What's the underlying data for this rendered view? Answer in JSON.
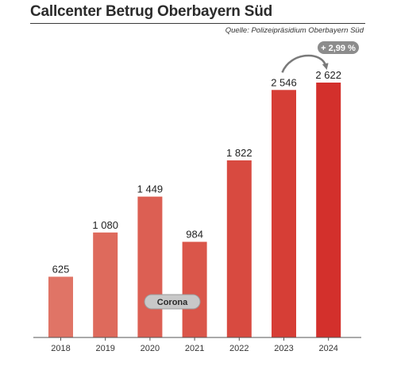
{
  "header": {
    "title": "Callcenter Betrug Oberbayern Süd",
    "source": "Quelle: Polizeipräsidium Oberbayern Süd"
  },
  "chart_data": {
    "type": "bar",
    "categories": [
      "2018",
      "2019",
      "2020",
      "2021",
      "2022",
      "2023",
      "2024"
    ],
    "values": [
      625,
      1080,
      1449,
      984,
      1822,
      2546,
      2622
    ],
    "value_labels": [
      "625",
      "1 080",
      "1 449",
      "984",
      "1 822",
      "2 546",
      "2 622"
    ],
    "ylim": [
      0,
      2622
    ],
    "grid": false,
    "colors": [
      "#e07466",
      "#de6a5c",
      "#dc5f53",
      "#da564a",
      "#d84a40",
      "#d63e36",
      "#d3302c"
    ],
    "annotations": {
      "corona_label": "Corona",
      "change_label": "+ 2,99 %",
      "badge_color": "#8c8c8c",
      "pill_color": "#c8c8c8"
    }
  }
}
